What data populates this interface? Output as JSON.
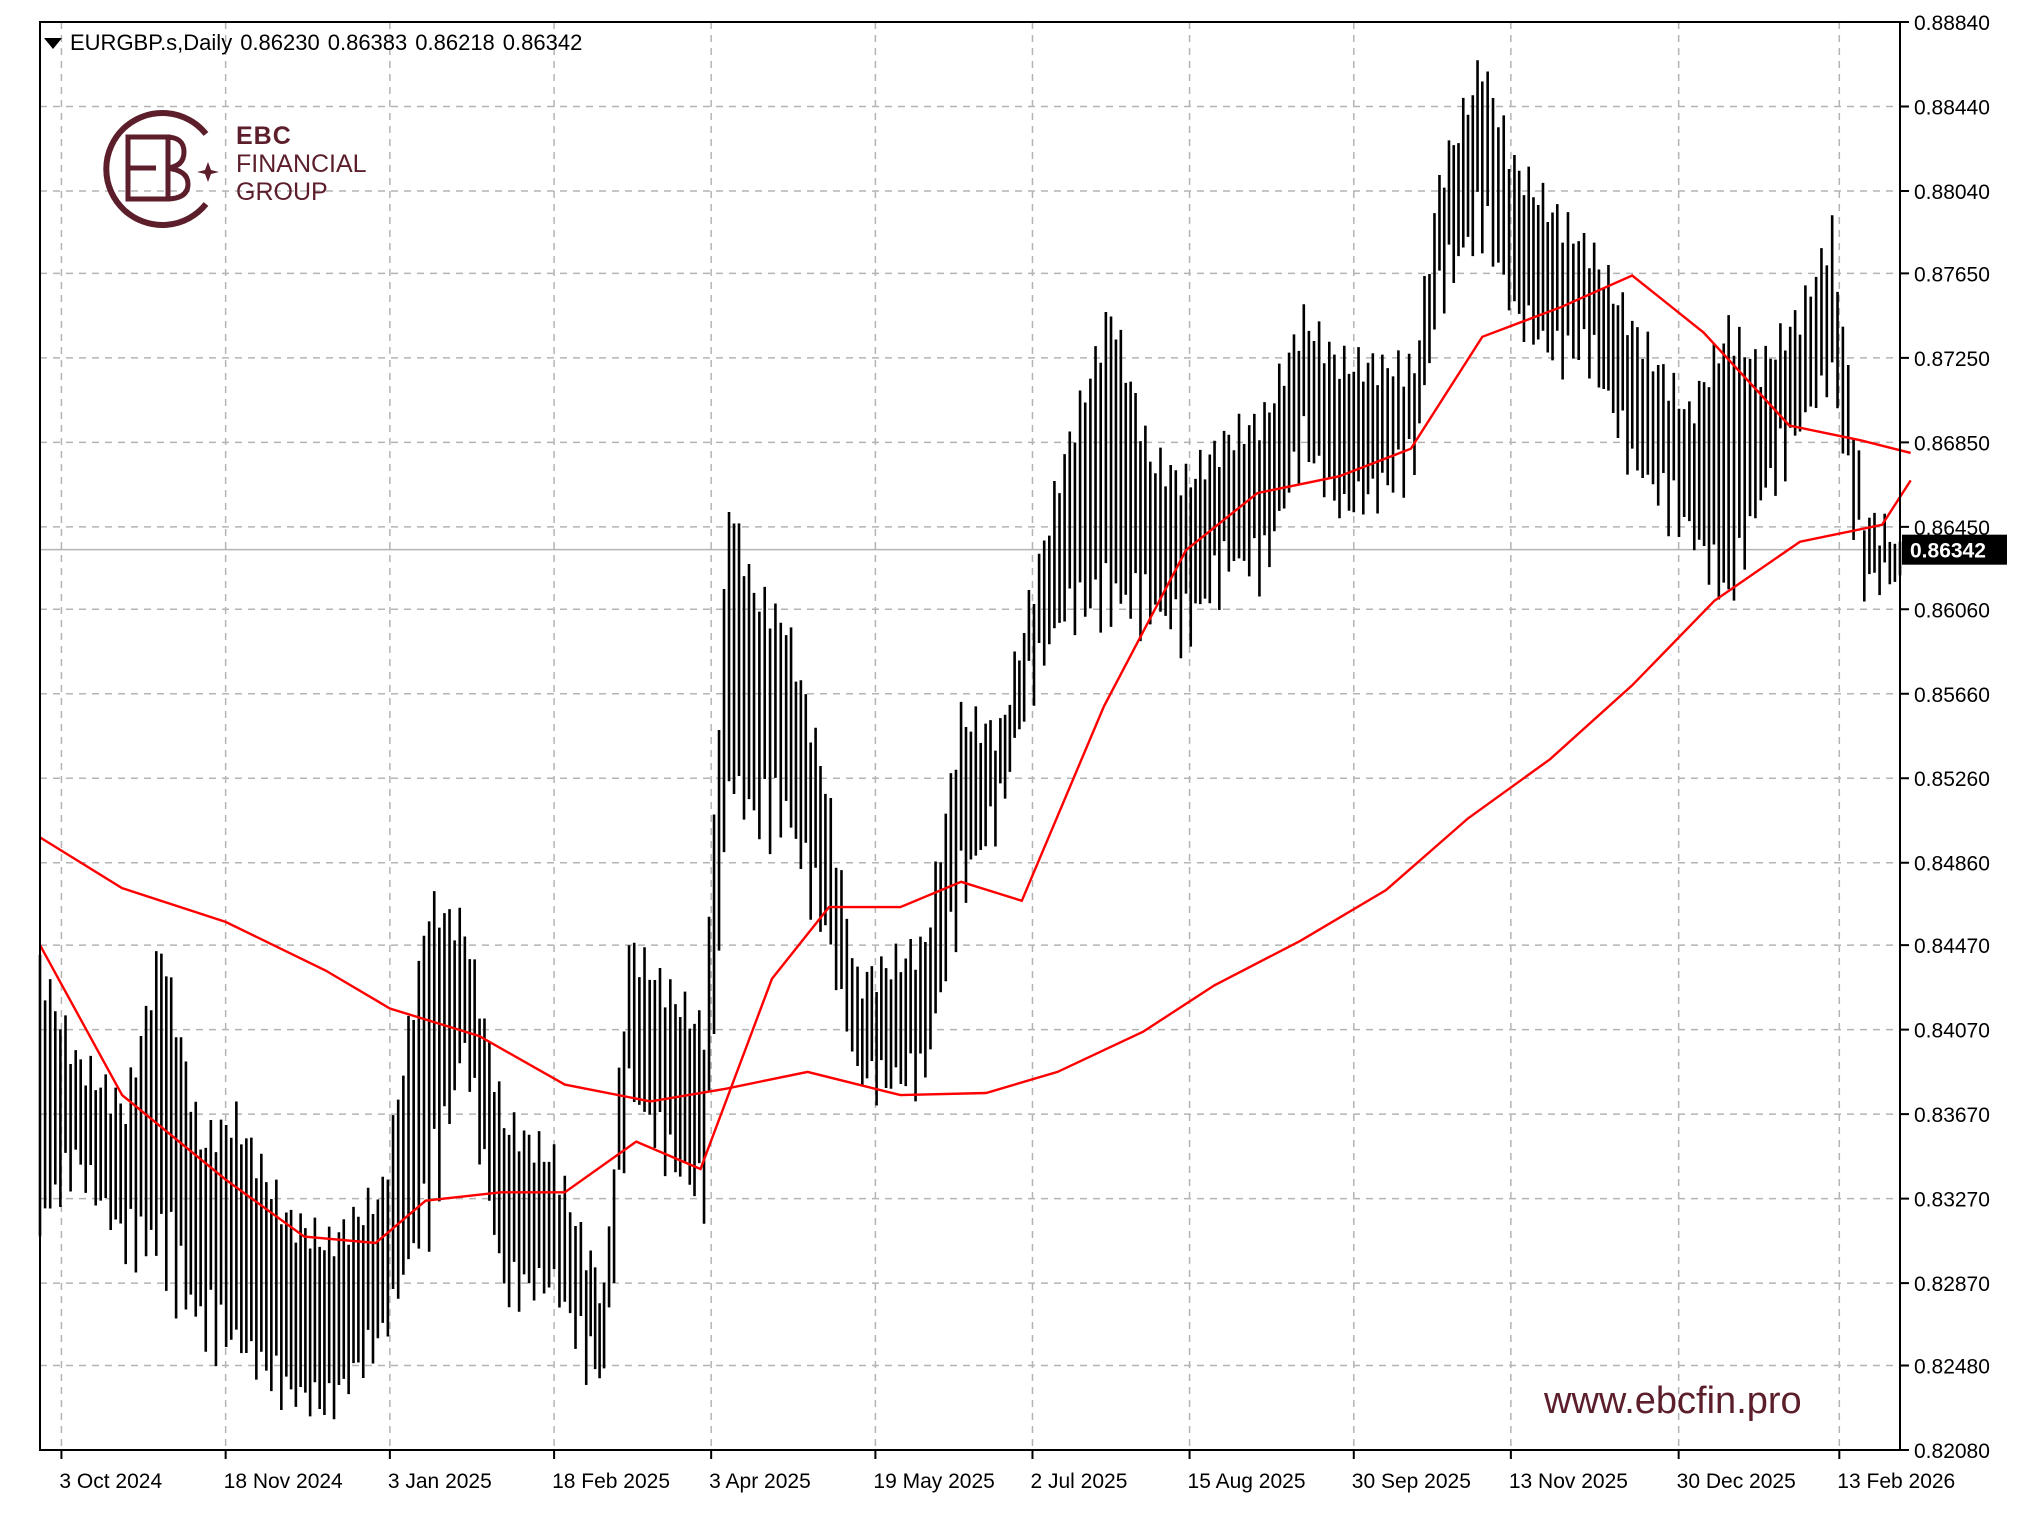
{
  "header": {
    "symbol": "EURGBP.s,Daily",
    "open": "0.86230",
    "high": "0.86383",
    "low": "0.86218",
    "close": "0.86342"
  },
  "brand": {
    "name_line1": "EBC",
    "name_line2": "FINANCIAL",
    "name_line3": "GROUP",
    "website": "www.ebcfin.pro",
    "color": "#5b1e2a"
  },
  "chart_data": {
    "type": "line",
    "title": "",
    "xlabel": "",
    "ylabel": "",
    "grid": true,
    "ylim": [
      0.8208,
      0.8884
    ],
    "x_start_date": "2024-09-27",
    "x_end_date": "2026-03-02",
    "last_price": 0.86342,
    "last_price_label": "0.86342",
    "y_ticks": [
      "0.88840",
      "0.88440",
      "0.88040",
      "0.87650",
      "0.87250",
      "0.86850",
      "0.86450",
      "0.86060",
      "0.85660",
      "0.85260",
      "0.84860",
      "0.84470",
      "0.84070",
      "0.83670",
      "0.83270",
      "0.82870",
      "0.82480",
      "0.82080"
    ],
    "y_tick_values": [
      0.8884,
      0.8844,
      0.8804,
      0.8765,
      0.8725,
      0.8685,
      0.8645,
      0.8606,
      0.8566,
      0.8526,
      0.8486,
      0.8447,
      0.8407,
      0.8367,
      0.8327,
      0.8287,
      0.8248,
      0.8208
    ],
    "x_ticks": [
      "3 Oct 2024",
      "18 Nov 2024",
      "3 Jan 2025",
      "18 Feb 2025",
      "3 Apr 2025",
      "19 May 2025",
      "2 Jul 2025",
      "15 Aug 2025",
      "30 Sep 2025",
      "13 Nov 2025",
      "30 Dec 2025",
      "13 Feb 2026"
    ],
    "x_tick_dates": [
      "2024-10-03",
      "2024-11-18",
      "2025-01-03",
      "2025-02-18",
      "2025-04-03",
      "2025-05-19",
      "2025-07-02",
      "2025-08-15",
      "2025-09-30",
      "2025-11-13",
      "2025-12-30",
      "2026-02-13"
    ],
    "colors": {
      "bars": "#000000",
      "ma": "#ff0000",
      "grid": "#b4b4b4",
      "price_line": "#b4b4b4"
    },
    "ohlc": [
      {
        "x": "2024-09-27",
        "h": 0.8436,
        "l": 0.8316
      },
      {
        "x": "2024-10-07",
        "h": 0.8393,
        "l": 0.8345
      },
      {
        "x": "2024-10-21",
        "h": 0.8369,
        "l": 0.8307
      },
      {
        "x": "2024-10-31",
        "h": 0.8447,
        "l": 0.8307
      },
      {
        "x": "2024-11-11",
        "h": 0.8353,
        "l": 0.8269
      },
      {
        "x": "2024-11-21",
        "h": 0.8364,
        "l": 0.826
      },
      {
        "x": "2024-12-05",
        "h": 0.8318,
        "l": 0.8236
      },
      {
        "x": "2024-12-17",
        "h": 0.8305,
        "l": 0.8229
      },
      {
        "x": "2025-01-01",
        "h": 0.833,
        "l": 0.8263
      },
      {
        "x": "2025-01-14",
        "h": 0.8465,
        "l": 0.8325
      },
      {
        "x": "2025-01-24",
        "h": 0.8455,
        "l": 0.84
      },
      {
        "x": "2025-02-04",
        "h": 0.8363,
        "l": 0.8284
      },
      {
        "x": "2025-02-18",
        "h": 0.8345,
        "l": 0.8287
      },
      {
        "x": "2025-02-27",
        "h": 0.8302,
        "l": 0.8253
      },
      {
        "x": "2025-03-04",
        "h": 0.8281,
        "l": 0.8244
      },
      {
        "x": "2025-03-11",
        "h": 0.8446,
        "l": 0.838
      },
      {
        "x": "2025-03-24",
        "h": 0.8421,
        "l": 0.8343
      },
      {
        "x": "2025-04-01",
        "h": 0.8406,
        "l": 0.8329
      },
      {
        "x": "2025-04-08",
        "h": 0.8657,
        "l": 0.8526
      },
      {
        "x": "2025-04-15",
        "h": 0.8613,
        "l": 0.8508
      },
      {
        "x": "2025-04-24",
        "h": 0.8598,
        "l": 0.851
      },
      {
        "x": "2025-05-05",
        "h": 0.8524,
        "l": 0.8455
      },
      {
        "x": "2025-05-14",
        "h": 0.8429,
        "l": 0.8386
      },
      {
        "x": "2025-05-22",
        "h": 0.8436,
        "l": 0.8382
      },
      {
        "x": "2025-06-02",
        "h": 0.8447,
        "l": 0.8387
      },
      {
        "x": "2025-06-12",
        "h": 0.8554,
        "l": 0.8474
      },
      {
        "x": "2025-06-23",
        "h": 0.8547,
        "l": 0.8512
      },
      {
        "x": "2025-07-01",
        "h": 0.8607,
        "l": 0.8569
      },
      {
        "x": "2025-07-11",
        "h": 0.8678,
        "l": 0.8605
      },
      {
        "x": "2025-07-24",
        "h": 0.8747,
        "l": 0.8612
      },
      {
        "x": "2025-08-04",
        "h": 0.8677,
        "l": 0.8607
      },
      {
        "x": "2025-08-14",
        "h": 0.8666,
        "l": 0.8597
      },
      {
        "x": "2025-08-26",
        "h": 0.8687,
        "l": 0.8629
      },
      {
        "x": "2025-09-05",
        "h": 0.8696,
        "l": 0.8627
      },
      {
        "x": "2025-09-16",
        "h": 0.8743,
        "l": 0.8686
      },
      {
        "x": "2025-09-26",
        "h": 0.8722,
        "l": 0.8653
      },
      {
        "x": "2025-10-08",
        "h": 0.8721,
        "l": 0.8663
      },
      {
        "x": "2025-10-17",
        "h": 0.872,
        "l": 0.8677
      },
      {
        "x": "2025-10-24",
        "h": 0.8808,
        "l": 0.8757
      },
      {
        "x": "2025-11-05",
        "h": 0.8864,
        "l": 0.8791
      },
      {
        "x": "2025-11-14",
        "h": 0.8815,
        "l": 0.8746
      },
      {
        "x": "2025-11-26",
        "h": 0.8791,
        "l": 0.8726
      },
      {
        "x": "2025-12-05",
        "h": 0.8776,
        "l": 0.8729
      },
      {
        "x": "2025-12-17",
        "h": 0.874,
        "l": 0.8676
      },
      {
        "x": "2026-01-02",
        "h": 0.8698,
        "l": 0.8644
      },
      {
        "x": "2026-01-13",
        "h": 0.8738,
        "l": 0.8612
      },
      {
        "x": "2026-01-22",
        "h": 0.872,
        "l": 0.8659
      },
      {
        "x": "2026-02-02",
        "h": 0.8745,
        "l": 0.8693
      },
      {
        "x": "2026-02-11",
        "h": 0.8784,
        "l": 0.8718
      },
      {
        "x": "2026-02-20",
        "h": 0.865,
        "l": 0.8619
      },
      {
        "x": "2026-03-02",
        "h": 0.8638,
        "l": 0.8622
      }
    ],
    "series": [
      {
        "x": [
          "2024-09-27",
          "2024-10-20",
          "2024-11-18",
          "2024-12-10",
          "2024-12-30",
          "2025-01-13",
          "2025-02-03",
          "2025-02-21",
          "2025-03-13",
          "2025-03-31",
          "2025-04-20",
          "2025-05-06",
          "2025-05-26",
          "2025-06-12",
          "2025-06-29",
          "2025-07-22",
          "2025-08-14",
          "2025-09-03",
          "2025-09-26",
          "2025-10-16",
          "2025-11-05",
          "2025-11-27",
          "2025-12-17",
          "2026-01-06",
          "2026-01-30",
          "2026-02-19",
          "2026-03-05"
        ],
        "y": [
          0.8447,
          0.8376,
          0.8336,
          0.8309,
          0.8306,
          0.8326,
          0.833,
          0.833,
          0.8354,
          0.8341,
          0.8431,
          0.8465,
          0.8465,
          0.8477,
          0.8468,
          0.856,
          0.8634,
          0.8661,
          0.8669,
          0.8682,
          0.8735,
          0.8749,
          0.8764,
          0.8737,
          0.8693,
          0.8686,
          0.868
        ]
      },
      {
        "x": [
          "2024-09-27",
          "2024-10-20",
          "2024-11-18",
          "2024-12-16",
          "2025-01-03",
          "2025-01-28",
          "2025-02-21",
          "2025-03-17",
          "2025-04-07",
          "2025-04-30",
          "2025-05-26",
          "2025-06-19",
          "2025-07-09",
          "2025-08-02",
          "2025-08-22",
          "2025-09-15",
          "2025-10-09",
          "2025-11-01",
          "2025-11-24",
          "2025-12-17",
          "2026-01-09",
          "2026-02-02",
          "2026-02-25",
          "2026-03-05"
        ],
        "y": [
          0.8498,
          0.8474,
          0.8458,
          0.8435,
          0.8417,
          0.8404,
          0.8381,
          0.8373,
          0.8379,
          0.8387,
          0.8376,
          0.8377,
          0.8387,
          0.8406,
          0.8428,
          0.8449,
          0.8473,
          0.8507,
          0.8535,
          0.857,
          0.861,
          0.8638,
          0.8646,
          0.8667
        ]
      }
    ]
  }
}
